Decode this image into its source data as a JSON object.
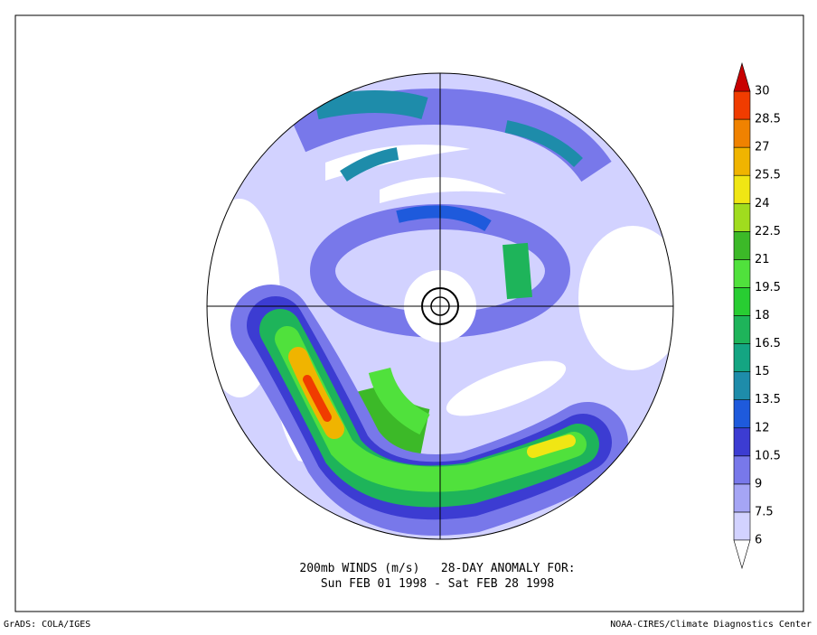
{
  "map": {
    "title": [
      "200mb WINDS (m/s)   28-DAY ANOMALY FOR:",
      "Sun FEB 01 1998 - Sat FEB 28 1998"
    ],
    "colorbar": {
      "levels": [
        6,
        7.5,
        9,
        10.5,
        12,
        13.5,
        15,
        16.5,
        18,
        19.5,
        21,
        22.5,
        24,
        25.5,
        27,
        28.5,
        30
      ],
      "colors": [
        "#d2d2ff",
        "#a5a5f5",
        "#7878ea",
        "#3c3cd2",
        "#1e5adc",
        "#1e8caa",
        "#14a582",
        "#1eb45a",
        "#28cd32",
        "#50e13c",
        "#3cb928",
        "#a0dc1e",
        "#f0e614",
        "#f0b400",
        "#f08200",
        "#f03c00"
      ],
      "under_color": "#ffffff",
      "over_color": "#c80000"
    },
    "footer_left": "GrADS: COLA/IGES",
    "footer_right": "NOAA-CIRES/Climate Diagnostics Center"
  }
}
